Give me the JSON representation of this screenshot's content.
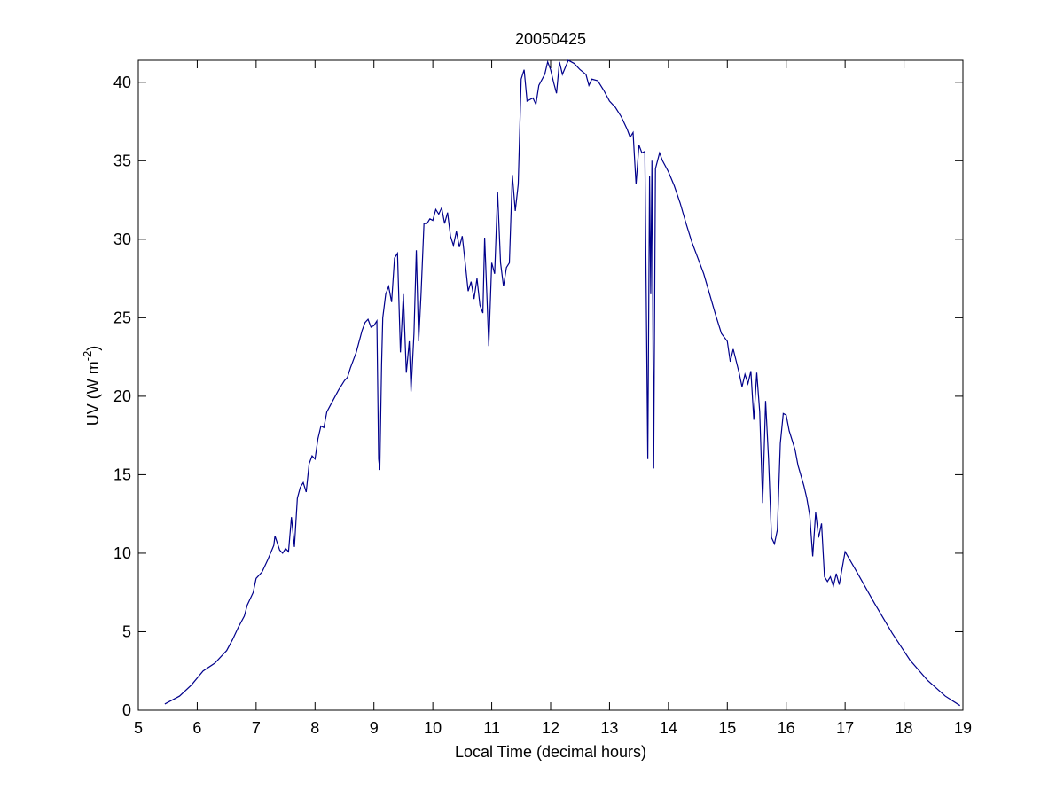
{
  "chart_data": {
    "type": "line",
    "title": "20050425",
    "x_label": "Local Time (decimal hours)",
    "y_label": [
      "UV (W m",
      "-2",
      ")"
    ],
    "xlim": [
      5,
      19
    ],
    "ylim": [
      0,
      41.4
    ],
    "xticks": [
      5,
      6,
      7,
      8,
      9,
      10,
      11,
      12,
      13,
      14,
      15,
      16,
      17,
      18,
      19
    ],
    "yticks": [
      0,
      5,
      10,
      15,
      20,
      25,
      30,
      35,
      40
    ],
    "grid": false,
    "series": [
      {
        "color": "#00008b",
        "x": [
          5.45,
          5.7,
          5.9,
          6.1,
          6.3,
          6.5,
          6.6,
          6.7,
          6.8,
          6.85,
          6.95,
          7.0,
          7.1,
          7.2,
          7.3,
          7.32,
          7.4,
          7.45,
          7.5,
          7.55,
          7.6,
          7.65,
          7.7,
          7.75,
          7.8,
          7.85,
          7.9,
          7.95,
          8.0,
          8.05,
          8.1,
          8.15,
          8.2,
          8.3,
          8.4,
          8.5,
          8.55,
          8.6,
          8.7,
          8.8,
          8.85,
          8.9,
          8.95,
          9.0,
          9.05,
          9.08,
          9.1,
          9.13,
          9.15,
          9.2,
          9.25,
          9.3,
          9.35,
          9.4,
          9.45,
          9.5,
          9.55,
          9.6,
          9.63,
          9.68,
          9.72,
          9.76,
          9.8,
          9.85,
          9.9,
          9.95,
          10.0,
          10.05,
          10.1,
          10.15,
          10.2,
          10.25,
          10.3,
          10.35,
          10.4,
          10.45,
          10.5,
          10.55,
          10.6,
          10.65,
          10.7,
          10.75,
          10.8,
          10.85,
          10.88,
          10.92,
          10.95,
          11.0,
          11.05,
          11.1,
          11.15,
          11.2,
          11.25,
          11.3,
          11.35,
          11.4,
          11.45,
          11.5,
          11.55,
          11.6,
          11.7,
          11.75,
          11.8,
          11.9,
          11.95,
          12.0,
          12.05,
          12.1,
          12.15,
          12.2,
          12.3,
          12.4,
          12.5,
          12.6,
          12.65,
          12.7,
          12.8,
          12.9,
          13.0,
          13.1,
          13.2,
          13.3,
          13.35,
          13.4,
          13.45,
          13.5,
          13.55,
          13.6,
          13.65,
          13.68,
          13.7,
          13.72,
          13.75,
          13.78,
          13.85,
          13.9,
          14.0,
          14.1,
          14.2,
          14.3,
          14.4,
          14.5,
          14.6,
          14.7,
          14.8,
          14.9,
          15.0,
          15.05,
          15.1,
          15.2,
          15.25,
          15.3,
          15.35,
          15.4,
          15.45,
          15.5,
          15.55,
          15.6,
          15.65,
          15.7,
          15.75,
          15.8,
          15.85,
          15.9,
          15.95,
          16.0,
          16.05,
          16.1,
          16.15,
          16.2,
          16.3,
          16.35,
          16.4,
          16.45,
          16.5,
          16.55,
          16.6,
          16.65,
          16.7,
          16.75,
          16.8,
          16.85,
          16.9,
          17.0,
          17.2,
          17.5,
          17.8,
          18.1,
          18.4,
          18.7,
          18.95
        ],
        "values": [
          0.4,
          0.9,
          1.6,
          2.5,
          3.0,
          3.8,
          4.5,
          5.3,
          6.0,
          6.7,
          7.5,
          8.4,
          8.8,
          9.6,
          10.5,
          11.1,
          10.2,
          10.0,
          10.3,
          10.1,
          12.3,
          10.4,
          13.5,
          14.2,
          14.5,
          13.9,
          15.7,
          16.2,
          16.0,
          17.3,
          18.1,
          18.0,
          19.0,
          19.7,
          20.4,
          21.0,
          21.2,
          21.8,
          22.8,
          24.2,
          24.7,
          24.9,
          24.4,
          24.5,
          24.8,
          16.0,
          15.3,
          22.0,
          25.0,
          26.5,
          27.0,
          26.0,
          28.8,
          29.1,
          22.8,
          26.5,
          21.5,
          23.5,
          20.3,
          24.0,
          29.3,
          23.5,
          26.5,
          31.0,
          31.0,
          31.3,
          31.2,
          31.9,
          31.6,
          32.0,
          31.0,
          31.7,
          30.2,
          29.6,
          30.5,
          29.5,
          30.2,
          28.5,
          26.7,
          27.3,
          26.2,
          27.5,
          25.8,
          25.3,
          30.1,
          26.2,
          23.2,
          28.5,
          27.8,
          33.0,
          28.5,
          27.0,
          28.2,
          28.5,
          34.1,
          31.8,
          33.5,
          40.2,
          40.8,
          38.8,
          39.0,
          38.6,
          39.8,
          40.5,
          41.3,
          40.8,
          40.0,
          39.3,
          41.3,
          40.5,
          41.4,
          41.2,
          40.8,
          40.5,
          39.8,
          40.2,
          40.1,
          39.5,
          38.8,
          38.4,
          37.8,
          37.0,
          36.5,
          36.8,
          33.5,
          36.0,
          35.5,
          35.6,
          16.0,
          34.0,
          26.5,
          35.0,
          15.4,
          34.5,
          35.5,
          35.0,
          34.3,
          33.4,
          32.3,
          31.0,
          29.8,
          28.8,
          27.8,
          26.5,
          25.2,
          24.0,
          23.5,
          22.2,
          23.0,
          21.5,
          20.6,
          21.4,
          20.8,
          21.6,
          18.5,
          21.5,
          19.0,
          13.2,
          19.7,
          16.0,
          11.0,
          10.6,
          11.5,
          17.0,
          18.9,
          18.8,
          17.8,
          17.2,
          16.6,
          15.6,
          14.3,
          13.5,
          12.4,
          9.8,
          12.6,
          11.0,
          11.9,
          8.5,
          8.2,
          8.5,
          7.9,
          8.7,
          8.0,
          10.1,
          8.8,
          6.8,
          4.9,
          3.2,
          1.9,
          0.9,
          0.3
        ]
      }
    ]
  }
}
